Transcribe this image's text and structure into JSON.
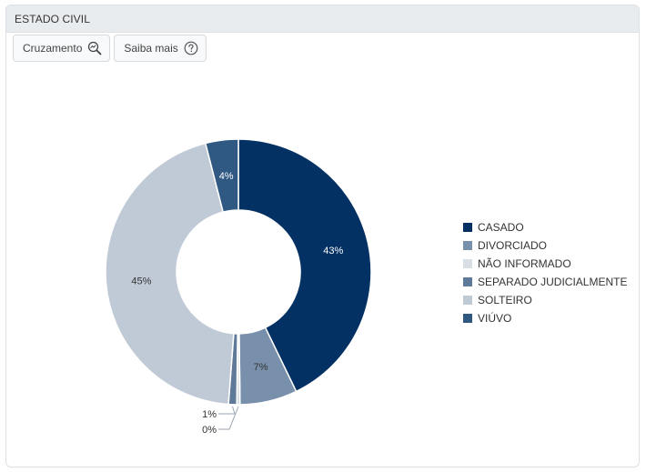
{
  "panel": {
    "title": "ESTADO CIVIL"
  },
  "toolbar": {
    "cross_label": "Cruzamento",
    "cross_icon": "magnifier-zoom-icon",
    "info_label": "Saiba mais",
    "info_icon": "question-circle-icon"
  },
  "chart_data": {
    "type": "pie",
    "donut": true,
    "categories": [
      "CASADO",
      "DIVORCIADO",
      "NÃO INFORMADO",
      "SEPARADO JUDICIALMENTE",
      "SOLTEIRO",
      "VIÚVO"
    ],
    "values": [
      43,
      7,
      0.4,
      1,
      45,
      4
    ],
    "labels": [
      "43%",
      "7%",
      "0%",
      "1%",
      "45%",
      "4%"
    ],
    "colors": [
      "#043163",
      "#7890ab",
      "#d9dfe7",
      "#5e7a98",
      "#c0cad7",
      "#2f5883"
    ],
    "label_colors": [
      "#ffffff",
      "#333333",
      "#333333",
      "#333333",
      "#333333",
      "#ffffff"
    ],
    "legend_position": "right"
  }
}
